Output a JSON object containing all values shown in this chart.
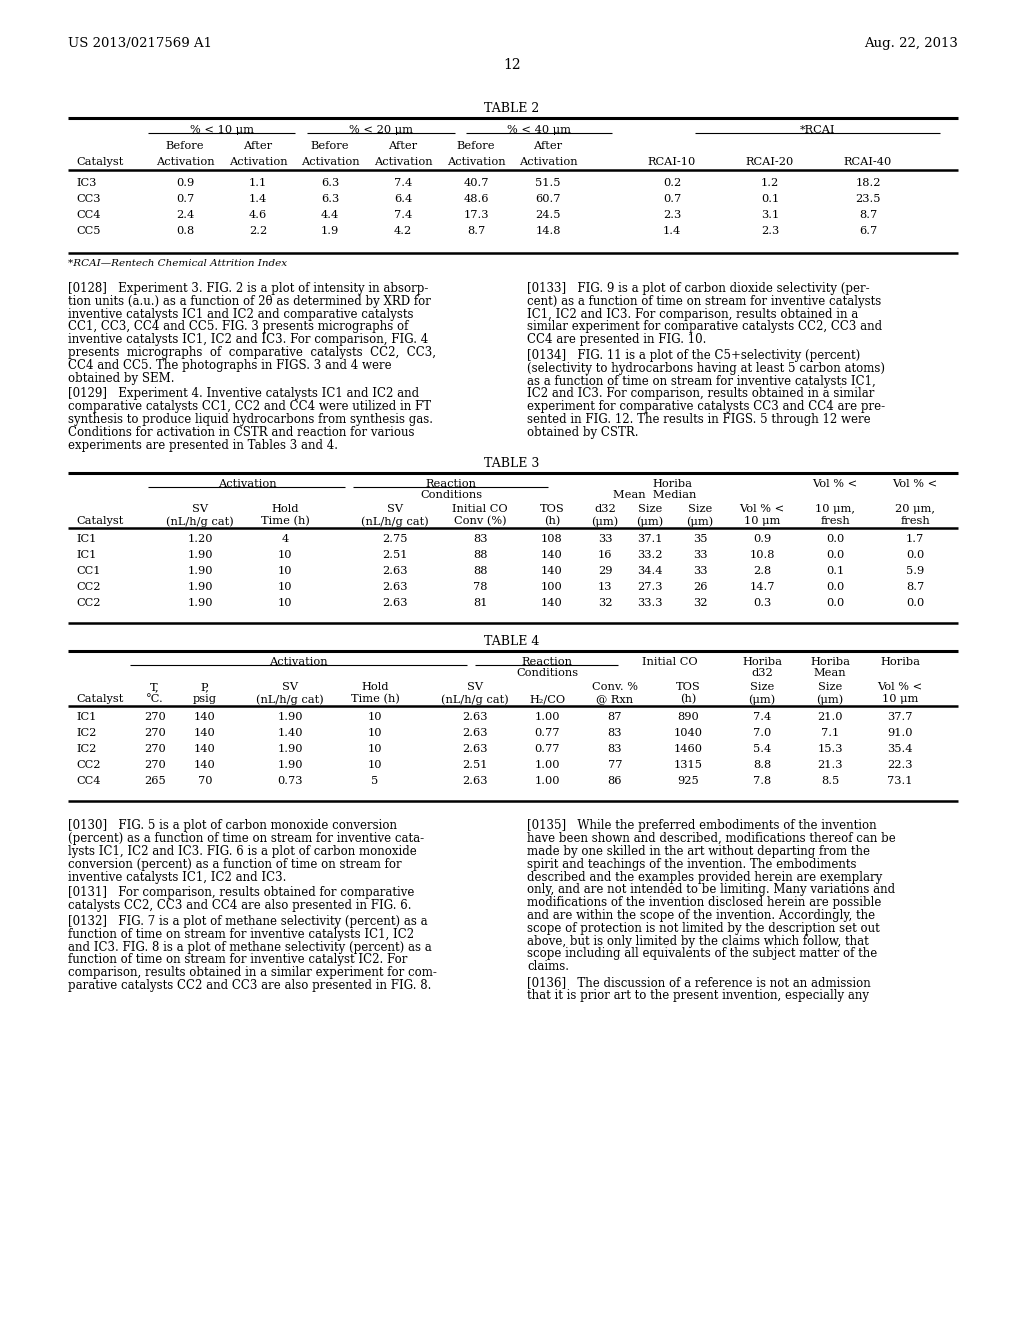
{
  "header_left": "US 2013/0217569 A1",
  "header_right": "Aug. 22, 2013",
  "page_number": "12",
  "background_color": "#ffffff",
  "text_color": "#000000",
  "table2": {
    "title": "TABLE 2",
    "rows": [
      [
        "IC3",
        "0.9",
        "1.1",
        "6.3",
        "7.4",
        "40.7",
        "51.5",
        "0.2",
        "1.2",
        "18.2"
      ],
      [
        "CC3",
        "0.7",
        "1.4",
        "6.3",
        "6.4",
        "48.6",
        "60.7",
        "0.7",
        "0.1",
        "23.5"
      ],
      [
        "CC4",
        "2.4",
        "4.6",
        "4.4",
        "7.4",
        "17.3",
        "24.5",
        "2.3",
        "3.1",
        "8.7"
      ],
      [
        "CC5",
        "0.8",
        "2.2",
        "1.9",
        "4.2",
        "8.7",
        "14.8",
        "1.4",
        "2.3",
        "6.7"
      ]
    ],
    "footnote": "*RCAI—Rentech Chemical Attrition Index"
  },
  "table3": {
    "title": "TABLE 3",
    "rows": [
      [
        "IC1",
        "1.20",
        "4",
        "2.75",
        "83",
        "108",
        "33",
        "37.1",
        "35",
        "0.9",
        "0.0",
        "1.7"
      ],
      [
        "IC1",
        "1.90",
        "10",
        "2.51",
        "88",
        "140",
        "16",
        "33.2",
        "33",
        "10.8",
        "0.0",
        "0.0"
      ],
      [
        "CC1",
        "1.90",
        "10",
        "2.63",
        "88",
        "140",
        "29",
        "34.4",
        "33",
        "2.8",
        "0.1",
        "5.9"
      ],
      [
        "CC2",
        "1.90",
        "10",
        "2.63",
        "78",
        "100",
        "13",
        "27.3",
        "26",
        "14.7",
        "0.0",
        "8.7"
      ],
      [
        "CC2",
        "1.90",
        "10",
        "2.63",
        "81",
        "140",
        "32",
        "33.3",
        "32",
        "0.3",
        "0.0",
        "0.0"
      ]
    ]
  },
  "table4": {
    "title": "TABLE 4",
    "rows": [
      [
        "IC1",
        "270",
        "140",
        "1.90",
        "10",
        "2.63",
        "1.00",
        "87",
        "890",
        "7.4",
        "21.0",
        "37.7"
      ],
      [
        "IC2",
        "270",
        "140",
        "1.40",
        "10",
        "2.63",
        "0.77",
        "83",
        "1040",
        "7.0",
        "7.1",
        "91.0"
      ],
      [
        "IC2",
        "270",
        "140",
        "1.90",
        "10",
        "2.63",
        "0.77",
        "83",
        "1460",
        "5.4",
        "15.3",
        "35.4"
      ],
      [
        "CC2",
        "270",
        "140",
        "1.90",
        "10",
        "2.51",
        "1.00",
        "77",
        "1315",
        "8.8",
        "21.3",
        "22.3"
      ],
      [
        "CC4",
        "265",
        "70",
        "0.73",
        "5",
        "2.63",
        "1.00",
        "86",
        "925",
        "7.8",
        "8.5",
        "73.1"
      ]
    ]
  }
}
